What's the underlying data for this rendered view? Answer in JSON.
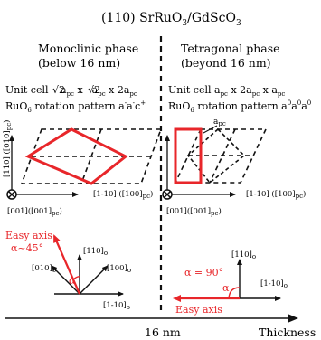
{
  "title": {
    "main": "(110) SrRuO",
    "sub3": "3",
    "mid": "/GdScO",
    "sub3b": "3"
  },
  "left": {
    "phase": "Monoclinic phase",
    "range": "(below 16 nm)",
    "unit_cell": {
      "pre": "Unit cell ",
      "a1": "a",
      "pc": "pc",
      "x1": " x",
      "a2": "a",
      "x2": " x 2a"
    },
    "rotation": {
      "pre": "RuO",
      "sub": "6",
      "text": " rotation pattern a",
      "sup1": "-",
      "a2": "a",
      "sup2": "-",
      "c": "c",
      "sup3": "+"
    },
    "axis_vertical": "[110] ([010]",
    "axis_vertical_sub": "pc",
    "axis_vertical_close": ")",
    "axis_horizontal": "[1-10] ([100]",
    "axis_origin": "[001]([001]",
    "easy_axis_line1": "Easy axis",
    "easy_axis_line2": "α~45°",
    "alpha": "α",
    "dir_110": "[110]",
    "dir_010": "[010]",
    "dir_100": "[100]",
    "dir_1m10": "[1-10]",
    "sub_o": "o"
  },
  "right": {
    "phase": "Tetragonal phase",
    "range": "(beyond 16 nm)",
    "unit_cell": {
      "pre": "Unit cell  a",
      "x1": " x 2a",
      "x2": " x a"
    },
    "rotation": {
      "pre": "RuO",
      "sub": "6",
      "text": " rotation pattern a",
      "sup": "0"
    },
    "apc_label": "a",
    "alpha_eq": "α = 90°",
    "alpha": "α",
    "easy_axis": "Easy axis",
    "dir_110": "[110]",
    "dir_1m10": "[1-10]"
  },
  "bottom": {
    "thickness_value": "16 nm",
    "thickness_label": "Thickness"
  },
  "colors": {
    "red": "#e8262a",
    "black": "#111111"
  }
}
